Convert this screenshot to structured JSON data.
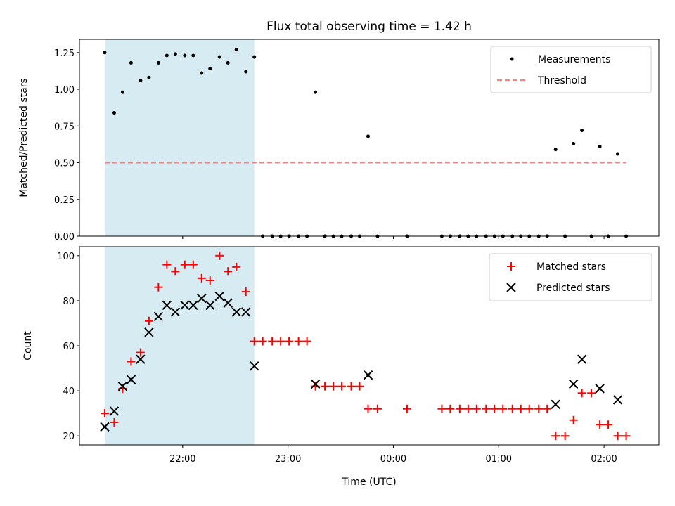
{
  "figure": {
    "title": "Flux total observing time = 1.42 h",
    "xlabel": "Time (UTC)",
    "xticks": [
      {
        "t": 21.94,
        "label": "22:00"
      },
      {
        "t": 22.94,
        "label": "23:00"
      },
      {
        "t": 23.94,
        "label": "00:00"
      },
      {
        "t": 24.94,
        "label": "01:00"
      },
      {
        "t": 25.94,
        "label": "02:00"
      }
    ],
    "xlim": [
      20.96,
      26.46
    ]
  },
  "chart_data": [
    {
      "type": "scatter",
      "ylabel": "Matched/Predicted stars",
      "ylim": [
        0,
        1.34
      ],
      "yticks": [
        "0.00",
        "0.25",
        "0.50",
        "0.75",
        "1.00",
        "1.25"
      ],
      "shaded_interval": {
        "x": [
          21.2,
          22.62
        ],
        "color": "#add8e6"
      },
      "legend": {
        "position": "upper right"
      },
      "series": [
        {
          "name": "Measurements",
          "marker": "dot",
          "color": "#000000",
          "x": [
            21.2,
            21.29,
            21.37,
            21.45,
            21.54,
            21.62,
            21.71,
            21.79,
            21.87,
            21.96,
            22.04,
            22.12,
            22.2,
            22.29,
            22.37,
            22.45,
            22.54,
            22.62,
            22.7,
            22.79,
            22.87,
            22.95,
            23.04,
            23.12,
            23.2,
            23.29,
            23.37,
            23.45,
            23.54,
            23.62,
            23.7,
            23.79,
            24.07,
            24.4,
            24.48,
            24.57,
            24.65,
            24.73,
            24.82,
            24.9,
            24.98,
            25.07,
            25.15,
            25.23,
            25.32,
            25.4,
            25.48,
            25.57,
            25.65,
            25.73,
            25.82,
            25.9,
            25.98,
            26.07,
            26.15
          ],
          "y": [
            1.25,
            0.84,
            0.98,
            1.18,
            1.06,
            1.08,
            1.18,
            1.23,
            1.24,
            1.23,
            1.23,
            1.11,
            1.14,
            1.22,
            1.18,
            1.27,
            1.12,
            1.22,
            0,
            0,
            0,
            0,
            0,
            0,
            0.98,
            0,
            0,
            0,
            0,
            0,
            0.68,
            0,
            0,
            0,
            0,
            0,
            0,
            0,
            0,
            0,
            0,
            0,
            0,
            0,
            0,
            0,
            0.59,
            0,
            0.63,
            0.72,
            0,
            0.61,
            0,
            0.56,
            0
          ]
        },
        {
          "name": "Threshold",
          "type": "line",
          "style": "dashed",
          "color": "#ff7f7f",
          "x": [
            21.2,
            26.15
          ],
          "y": [
            0.5,
            0.5
          ]
        }
      ]
    },
    {
      "type": "scatter",
      "ylabel": "Count",
      "ylim": [
        16,
        104
      ],
      "yticks": [
        "20",
        "40",
        "60",
        "80",
        "100"
      ],
      "shaded_interval": {
        "x": [
          21.2,
          22.62
        ],
        "color": "#add8e6"
      },
      "legend": {
        "position": "upper right"
      },
      "series": [
        {
          "name": "Matched stars",
          "marker": "plus",
          "color": "#ff0000",
          "x": [
            21.2,
            21.29,
            21.37,
            21.45,
            21.54,
            21.62,
            21.71,
            21.79,
            21.87,
            21.96,
            22.04,
            22.12,
            22.2,
            22.29,
            22.37,
            22.45,
            22.54,
            22.62,
            22.7,
            22.79,
            22.87,
            22.95,
            23.04,
            23.12,
            23.2,
            23.29,
            23.37,
            23.45,
            23.54,
            23.62,
            23.7,
            23.79,
            24.07,
            24.4,
            24.48,
            24.57,
            24.65,
            24.73,
            24.82,
            24.9,
            24.98,
            25.07,
            25.15,
            25.23,
            25.32,
            25.4,
            25.48,
            25.57,
            25.65,
            25.73,
            25.82,
            25.9,
            25.98,
            26.07,
            26.15
          ],
          "y": [
            30,
            26,
            41,
            53,
            57,
            71,
            86,
            96,
            93,
            96,
            96,
            90,
            89,
            100,
            93,
            95,
            84,
            62,
            62,
            62,
            62,
            62,
            62,
            62,
            42,
            42,
            42,
            42,
            42,
            42,
            32,
            32,
            32,
            32,
            32,
            32,
            32,
            32,
            32,
            32,
            32,
            32,
            32,
            32,
            32,
            32,
            20,
            20,
            27,
            39,
            39,
            25,
            25,
            20,
            20
          ]
        },
        {
          "name": "Predicted stars",
          "marker": "x",
          "color": "#000000",
          "x": [
            21.2,
            21.29,
            21.37,
            21.45,
            21.54,
            21.62,
            21.71,
            21.79,
            21.87,
            21.96,
            22.04,
            22.12,
            22.2,
            22.29,
            22.37,
            22.45,
            22.54,
            22.62,
            23.2,
            23.7,
            25.48,
            25.65,
            25.73,
            25.9,
            26.07
          ],
          "y": [
            24,
            31,
            42,
            45,
            54,
            66,
            73,
            78,
            75,
            78,
            78,
            81,
            78,
            82,
            79,
            75,
            75,
            51,
            43,
            47,
            34,
            43,
            54,
            41,
            36
          ]
        }
      ]
    }
  ]
}
